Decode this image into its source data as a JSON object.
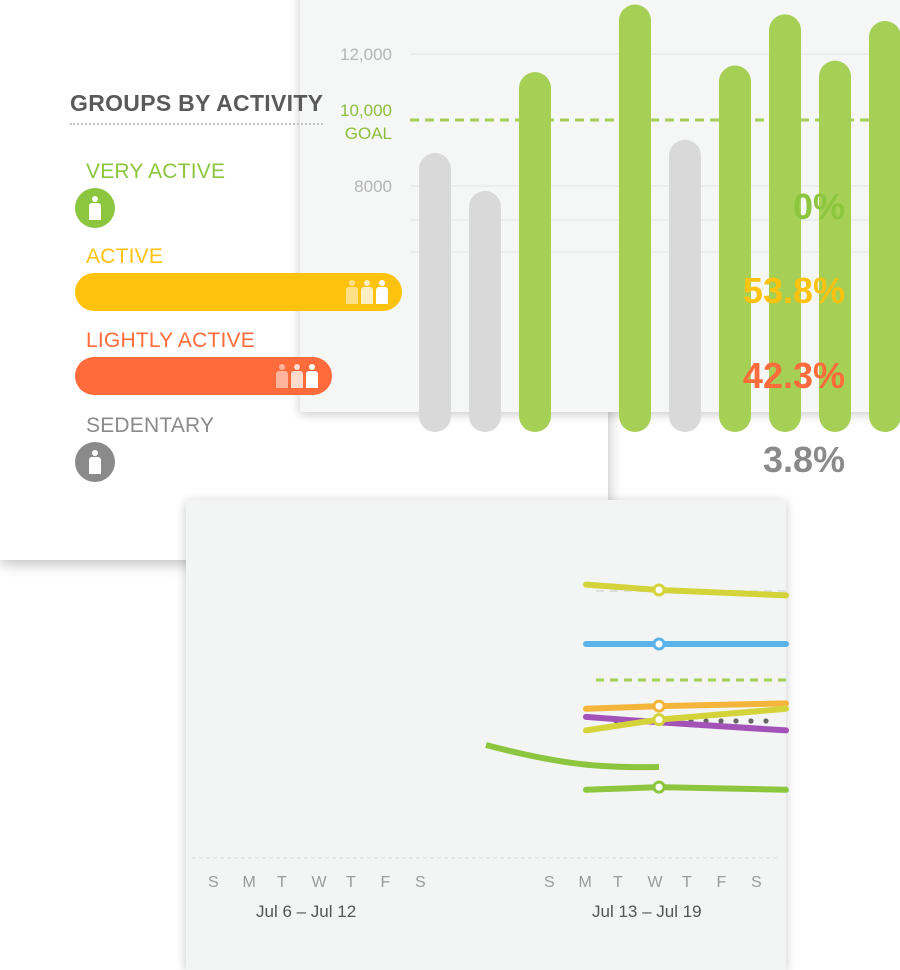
{
  "chart_data": [
    {
      "type": "bar",
      "y_ticks": [
        {
          "value": 12000,
          "label": "12,000"
        },
        {
          "value": 10000,
          "label": "10,000"
        },
        {
          "value": 8000,
          "label": "8000"
        }
      ],
      "goal": {
        "value": 10000,
        "label": "GOAL"
      },
      "values": [
        9000,
        7850,
        11450,
        13500,
        9400,
        11650,
        13200,
        11800,
        13000
      ],
      "colors": [
        "#d9d9d9",
        "#d9d9d9",
        "#a6cf55",
        "#a6cf55",
        "#d9d9d9",
        "#a6cf55",
        "#a6cf55",
        "#a6cf55",
        "#a6cf55"
      ],
      "ylim": [
        4800,
        12600
      ],
      "grid": true
    },
    {
      "type": "line",
      "week_labels": [
        "Jul 6 – Jul 12",
        "Jul 13 – Jul 19"
      ],
      "days": [
        "S",
        "M",
        "T",
        "W",
        "T",
        "F",
        "S"
      ],
      "series": [
        {
          "color": "#d4d43a",
          "values": [
            1.02,
            1.0,
            0.98
          ]
        },
        {
          "color": "#5ab4ea",
          "values": [
            0.8,
            0.8,
            0.8
          ]
        },
        {
          "color": "#f5b53a",
          "values": [
            0.56,
            0.57,
            0.58
          ]
        },
        {
          "color": "#a353b8",
          "values": [
            0.53,
            0.51,
            0.48
          ]
        },
        {
          "color": "#d4d43a",
          "values": [
            0.48,
            0.52,
            0.56
          ]
        },
        {
          "color": "#8cc63f",
          "values": [
            0.26,
            0.27,
            0.26
          ]
        }
      ],
      "ylim": [
        0,
        1.2
      ]
    }
  ],
  "groups": {
    "title": "GROUPS BY ACTIVITY",
    "items": [
      {
        "label": "VERY ACTIVE",
        "percent": "0%",
        "value": 0,
        "color": "#8cc63f"
      },
      {
        "label": "ACTIVE",
        "percent": "53.8%",
        "value": 53.8,
        "color": "#ffc20e"
      },
      {
        "label": "LIGHTLY ACTIVE",
        "percent": "42.3%",
        "value": 42.3,
        "color": "#ff6b3a"
      },
      {
        "label": "SEDENTARY",
        "percent": "3.8%",
        "value": 3.8,
        "color": "#8a8a8a"
      }
    ]
  }
}
